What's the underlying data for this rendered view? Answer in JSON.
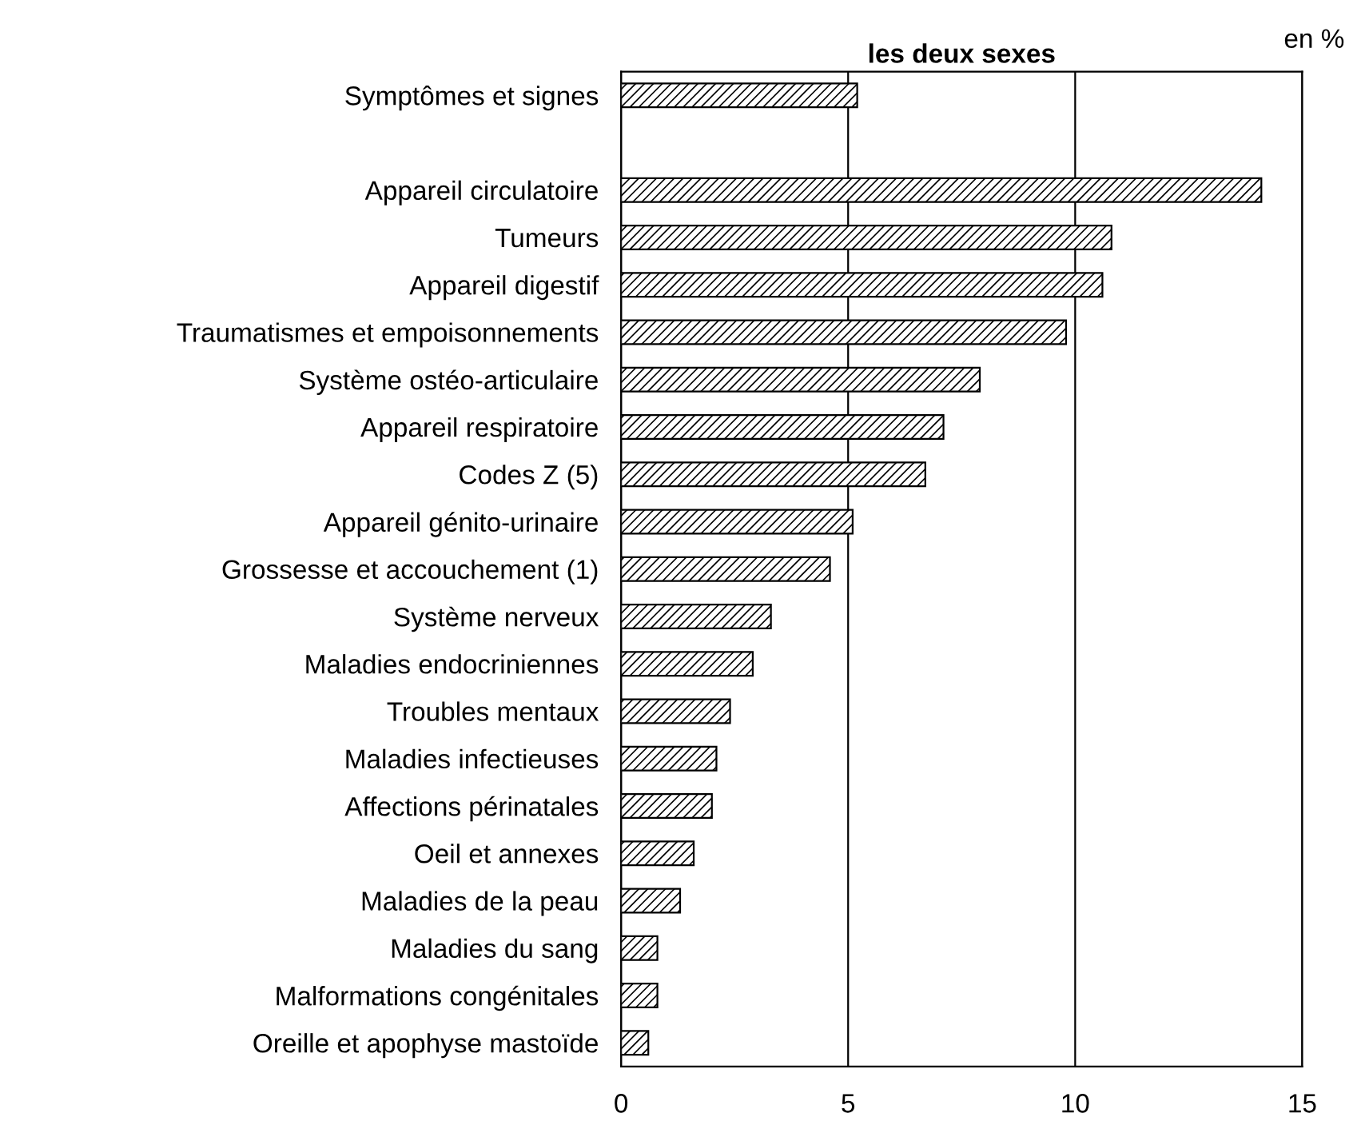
{
  "chart_data": {
    "type": "bar",
    "orientation": "horizontal",
    "title": "les deux sexes",
    "annotations": [
      "en %"
    ],
    "categories": [
      "Symptômes et signes",
      null,
      "Appareil circulatoire",
      "Tumeurs",
      "Appareil digestif",
      "Traumatismes et empoisonnements",
      "Système ostéo-articulaire",
      "Appareil respiratoire",
      "Codes Z (5)",
      "Appareil génito-urinaire",
      "Grossesse et accouchement (1)",
      "Système nerveux",
      "Maladies endocriniennes",
      "Troubles mentaux",
      "Maladies infectieuses",
      "Affections périnatales",
      "Oeil et annexes",
      "Maladies de la peau",
      "Maladies du sang",
      "Malformations congénitales",
      "Oreille et apophyse mastoïde"
    ],
    "values": [
      5.2,
      null,
      14.1,
      10.8,
      10.6,
      9.8,
      7.9,
      7.1,
      6.7,
      5.1,
      4.6,
      3.3,
      2.9,
      2.4,
      2.1,
      2.0,
      1.6,
      1.3,
      0.8,
      0.8,
      0.6
    ],
    "color": "#000000",
    "xlim": [
      0,
      15
    ],
    "xticks": [
      0,
      5,
      10,
      15
    ],
    "grid": "x"
  }
}
